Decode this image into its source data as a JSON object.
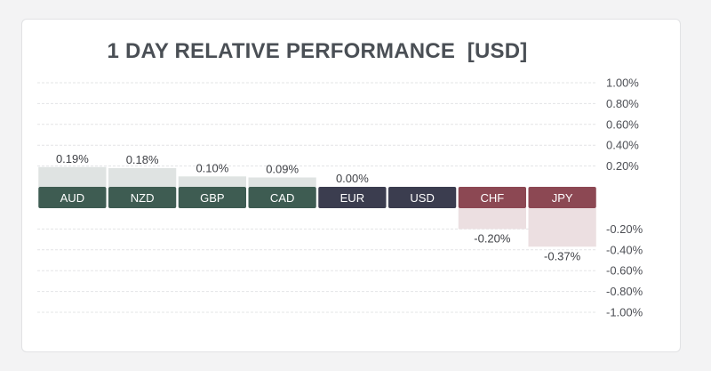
{
  "chart_data": {
    "type": "bar",
    "title": "1 DAY RELATIVE PERFORMANCE  [USD]",
    "categories": [
      "AUD",
      "NZD",
      "GBP",
      "CAD",
      "EUR",
      "USD",
      "CHF",
      "JPY"
    ],
    "values": [
      0.19,
      0.18,
      0.1,
      0.09,
      0.0,
      null,
      -0.2,
      -0.37
    ],
    "value_labels": [
      "0.19%",
      "0.18%",
      "0.10%",
      "0.09%",
      "0.00%",
      "",
      "-0.20%",
      "-0.37%"
    ],
    "label_colors": [
      "#3e5c52",
      "#3e5c52",
      "#3e5c52",
      "#3e5c52",
      "#3b3d4f",
      "#3b3d4f",
      "#8c4853",
      "#8c4853"
    ],
    "positive_fill": "#dfe3e2",
    "negative_fill": "#ecdfe1",
    "ylim": [
      -1.0,
      1.0
    ],
    "yticks_pos": [
      "1.00%",
      "0.80%",
      "0.60%",
      "0.40%",
      "0.20%"
    ],
    "yticks_neg": [
      "-0.20%",
      "-0.40%",
      "-0.60%",
      "-0.80%",
      "-1.00%"
    ],
    "grid": true
  }
}
